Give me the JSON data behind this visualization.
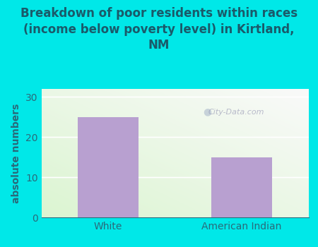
{
  "categories": [
    "White",
    "American Indian"
  ],
  "values": [
    25,
    15
  ],
  "bar_color": "#b8a0d0",
  "title": "Breakdown of poor residents within races\n(income below poverty level) in Kirtland,\nNM",
  "ylabel": "absolute numbers",
  "ylim": [
    0,
    32
  ],
  "yticks": [
    0,
    10,
    20,
    30
  ],
  "background_color": "#00e8e8",
  "title_color": "#1a5a6a",
  "axis_color": "#2a6a7a",
  "grid_color": "#ffffff",
  "watermark": "City-Data.com",
  "title_fontsize": 12,
  "ylabel_fontsize": 10
}
